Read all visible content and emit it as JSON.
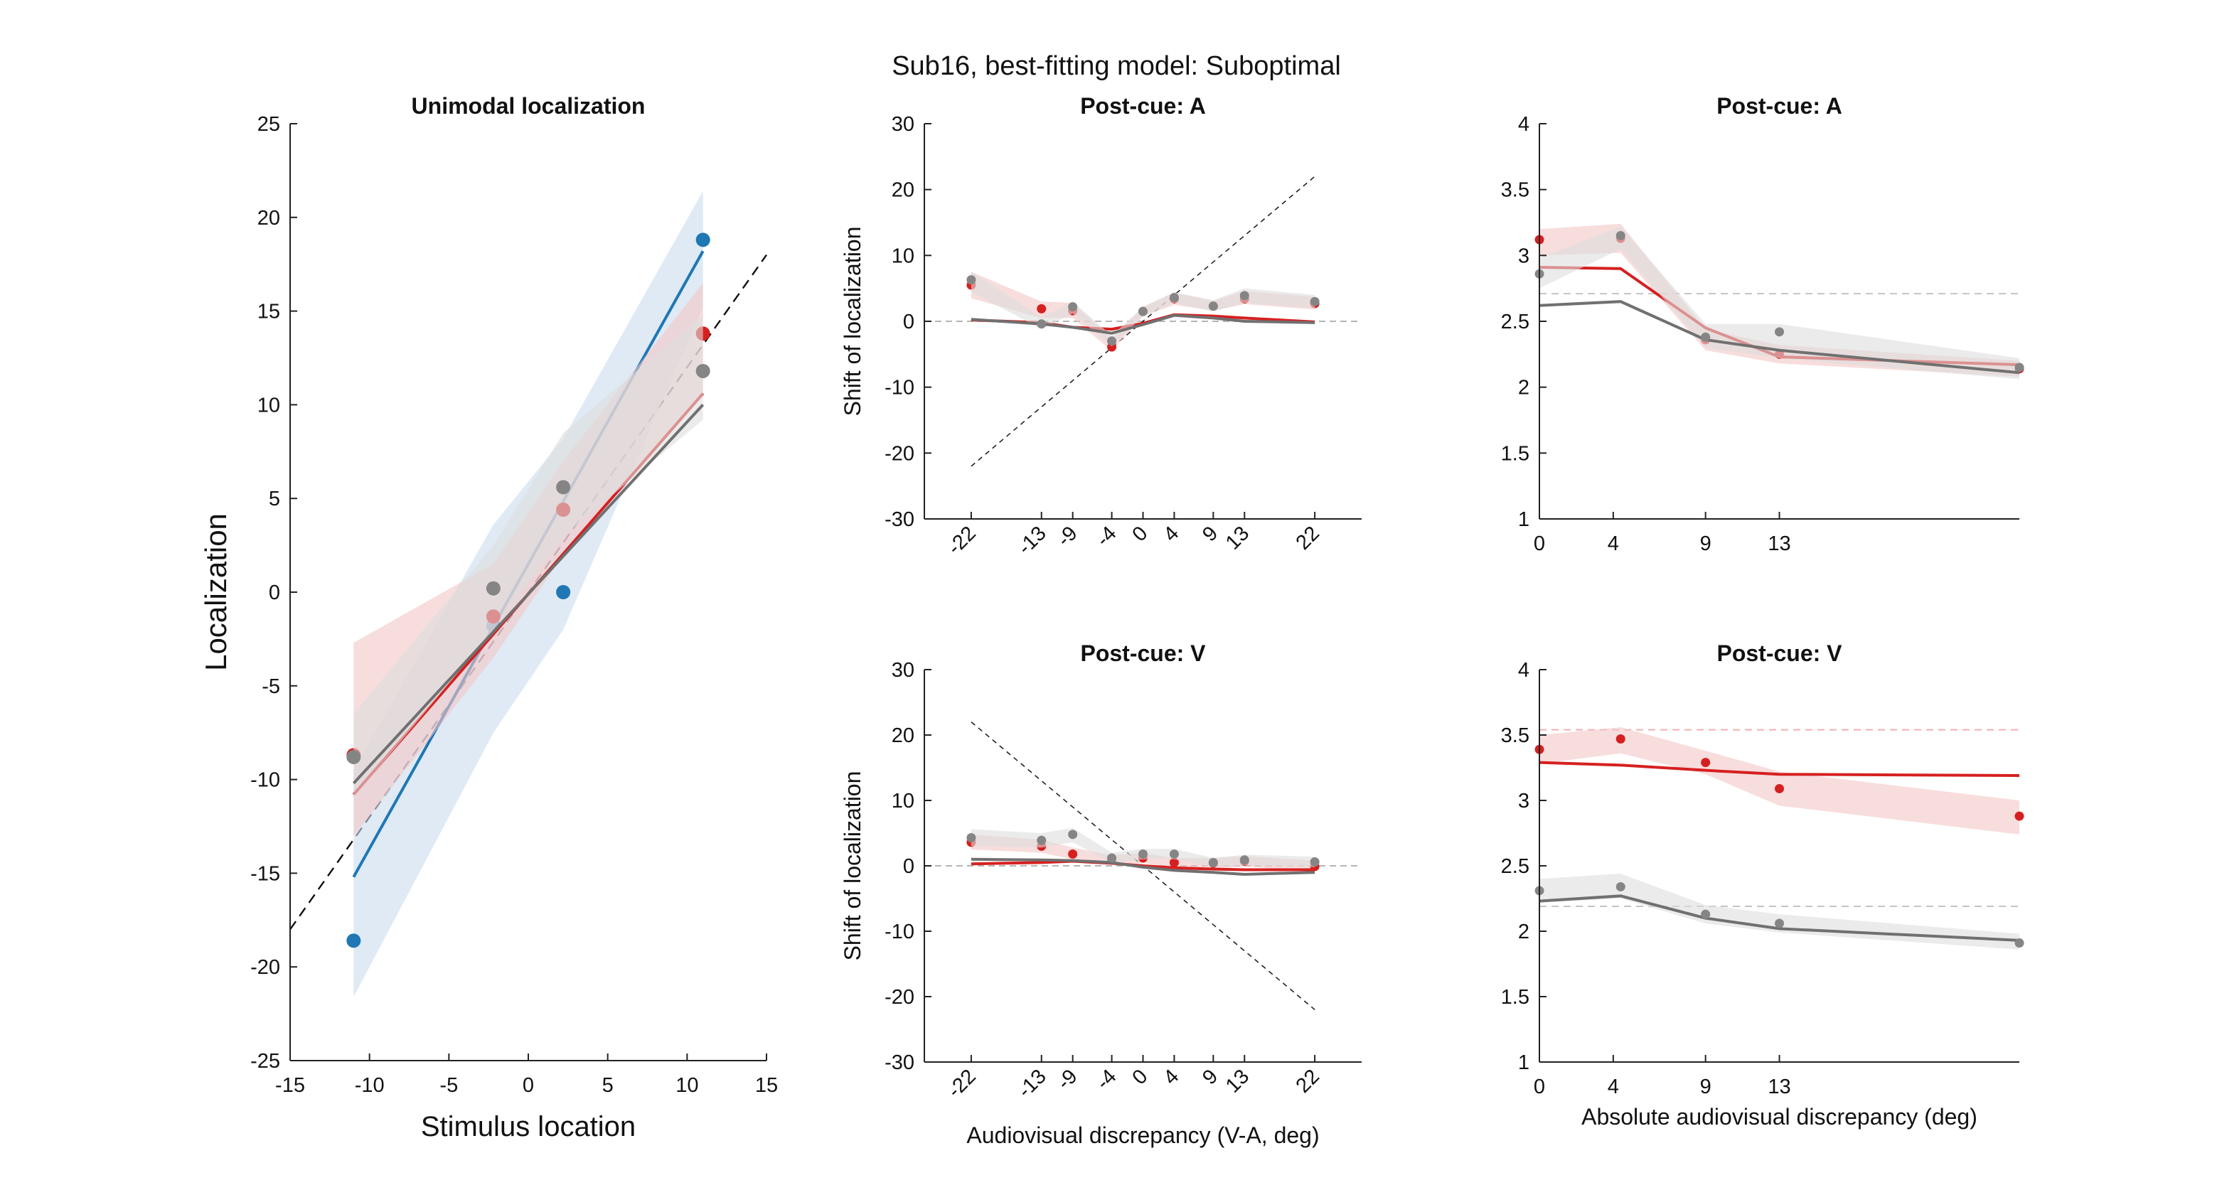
{
  "figure": {
    "suptitle": "Sub16, best-fitting model: Suboptimal"
  },
  "colors": {
    "red": "#d62020",
    "gray": "#707070",
    "gray_point": "#858585",
    "blue": "#1f77b4",
    "red_band": "#f3c6c6",
    "gray_band": "#dedede",
    "blue_band": "#c9dcef"
  },
  "chart_data": [
    {
      "type": "scatter",
      "panel": "unimodal",
      "title": "Unimodal localization",
      "xlabel": "Stimulus location",
      "ylabel": "Localization",
      "xlim": [
        -15,
        15
      ],
      "ylim": [
        -25,
        25
      ],
      "xticks": [
        -15,
        -10,
        -5,
        0,
        5,
        10,
        15
      ],
      "yticks": [
        -25,
        -20,
        -15,
        -10,
        -5,
        0,
        5,
        10,
        15,
        20,
        25
      ],
      "identity_line": true,
      "series": [
        {
          "color": "blue",
          "x": [
            -11,
            -2.2,
            2.2,
            11
          ],
          "y": [
            -18.6,
            -1.8,
            0.0,
            18.8
          ],
          "fit": [
            [
              -11,
              -15.2
            ],
            [
              11,
              18.2
            ]
          ],
          "band_x": [
            -11,
            -2.2,
            2.2,
            11
          ],
          "band_lo": [
            -21.6,
            -7.5,
            -2.0,
            15.2
          ],
          "band_hi": [
            -9.5,
            3.6,
            8.2,
            21.4
          ]
        },
        {
          "color": "red",
          "x": [
            -11,
            -2.2,
            2.2,
            11
          ],
          "y": [
            -8.7,
            -1.3,
            4.4,
            13.8
          ],
          "fit": [
            [
              -11,
              -10.8
            ],
            [
              11,
              10.6
            ]
          ],
          "band_x": [
            -11,
            -2.2,
            2.2,
            11
          ],
          "band_lo": [
            -13.0,
            -3.5,
            2.0,
            10.5
          ],
          "band_hi": [
            -2.7,
            1.5,
            7.0,
            16.5
          ]
        },
        {
          "color": "gray",
          "x": [
            -11,
            -2.2,
            2.2,
            11
          ],
          "y": [
            -8.8,
            0.2,
            5.6,
            11.8
          ],
          "fit": [
            [
              -11,
              -10.2
            ],
            [
              11,
              10.0
            ]
          ],
          "band_x": [
            -11,
            -2.2,
            2.2,
            11
          ],
          "band_lo": [
            -11.0,
            -2.0,
            3.0,
            9.2
          ],
          "band_hi": [
            -6.5,
            2.5,
            8.5,
            14.8
          ]
        }
      ]
    },
    {
      "type": "line",
      "panel": "shift-a",
      "title": "Post-cue: A",
      "xlabel": "",
      "ylabel": "Shift of localization",
      "xlim": [
        -28,
        28
      ],
      "ylim": [
        -30,
        30
      ],
      "xticks": [
        -22,
        -13,
        -9,
        -4,
        0,
        4,
        9,
        13,
        22
      ],
      "yticks": [
        -30,
        -20,
        -10,
        0,
        10,
        20,
        30
      ],
      "diagonal": [
        [
          -22,
          -22
        ],
        [
          22,
          22
        ]
      ],
      "zero_line": true,
      "series": [
        {
          "color": "red",
          "x": [
            -22,
            -13,
            -9,
            -4,
            0,
            4,
            9,
            13,
            22
          ],
          "points": [
            5.5,
            1.9,
            1.6,
            -3.9,
            1.5,
            3.4,
            2.3,
            3.4,
            2.7
          ],
          "model": [
            0.2,
            -0.2,
            -0.9,
            -1.2,
            -0.3,
            1.0,
            0.8,
            0.5,
            -0.1
          ],
          "band_lo": [
            3.5,
            0.5,
            0.5,
            -4.5,
            0.8,
            2.5,
            1.6,
            2.6,
            1.8
          ],
          "band_hi": [
            7.5,
            3.0,
            2.8,
            -2.6,
            2.2,
            4.4,
            3.1,
            4.6,
            3.7
          ]
        },
        {
          "color": "gray",
          "x": [
            -22,
            -13,
            -9,
            -4,
            0,
            4,
            9,
            13,
            22
          ],
          "points": [
            6.3,
            -0.4,
            2.2,
            -3.0,
            1.5,
            3.6,
            2.3,
            3.9,
            3.0
          ],
          "model": [
            0.3,
            -0.4,
            -0.9,
            -1.8,
            -0.5,
            0.9,
            0.5,
            0.0,
            -0.2
          ],
          "band_lo": [
            4.5,
            -1.2,
            1.2,
            -3.8,
            0.8,
            2.8,
            1.5,
            2.8,
            2.0
          ],
          "band_hi": [
            7.6,
            0.6,
            3.0,
            -2.2,
            2.2,
            4.4,
            3.2,
            5.0,
            4.0
          ]
        }
      ]
    },
    {
      "type": "line",
      "panel": "shift-v",
      "title": "Post-cue: V",
      "xlabel": "Audiovisual discrepancy (V-A, deg)",
      "ylabel": "Shift of localization",
      "xlim": [
        -28,
        28
      ],
      "ylim": [
        -30,
        30
      ],
      "xticks": [
        -22,
        -13,
        -9,
        -4,
        0,
        4,
        9,
        13,
        22
      ],
      "yticks": [
        -30,
        -20,
        -10,
        0,
        10,
        20,
        30
      ],
      "diagonal": [
        [
          -22,
          22
        ],
        [
          22,
          -22
        ]
      ],
      "zero_line": true,
      "series": [
        {
          "color": "red",
          "x": [
            -22,
            -13,
            -9,
            -4,
            0,
            4,
            9,
            13,
            22
          ],
          "points": [
            3.6,
            3.0,
            1.8,
            1.0,
            1.2,
            0.5,
            0.4,
            0.7,
            -0.1
          ],
          "model": [
            0.3,
            0.5,
            0.7,
            0.4,
            0.0,
            -0.3,
            -0.5,
            -0.6,
            -0.6
          ],
          "band_lo": [
            2.5,
            2.0,
            1.0,
            0.3,
            0.4,
            -0.3,
            -0.4,
            -0.1,
            -0.9
          ],
          "band_hi": [
            4.8,
            4.0,
            2.8,
            1.6,
            2.0,
            1.2,
            1.2,
            1.5,
            0.8
          ]
        },
        {
          "color": "gray",
          "x": [
            -22,
            -13,
            -9,
            -4,
            0,
            4,
            9,
            13,
            22
          ],
          "points": [
            4.3,
            3.9,
            4.8,
            1.2,
            1.8,
            1.8,
            0.5,
            0.9,
            0.6
          ],
          "model": [
            1.0,
            0.9,
            0.8,
            0.5,
            -0.2,
            -0.7,
            -1.0,
            -1.3,
            -1.0
          ],
          "band_lo": [
            3.0,
            2.8,
            3.6,
            0.4,
            1.0,
            1.0,
            -0.2,
            0.1,
            -0.2
          ],
          "band_hi": [
            5.6,
            5.0,
            5.8,
            2.0,
            2.6,
            2.6,
            1.2,
            1.7,
            1.4
          ]
        }
      ]
    },
    {
      "type": "line",
      "panel": "abs-a",
      "title": "Post-cue: A",
      "xlabel": "",
      "ylabel": "",
      "xlim": [
        0,
        26
      ],
      "ylim": [
        1,
        4
      ],
      "xticks": [
        0,
        4,
        9,
        13
      ],
      "yticks": [
        1,
        1.5,
        2,
        2.5,
        3,
        3.5,
        4
      ],
      "reference_lines": [
        2.71
      ],
      "series": [
        {
          "color": "red",
          "x": [
            0,
            4.4,
            9,
            13,
            26
          ],
          "points": [
            3.12,
            3.13,
            2.36,
            2.25,
            2.14
          ],
          "model": [
            2.91,
            2.9,
            2.45,
            2.23,
            2.17
          ],
          "band_lo": [
            3.0,
            3.02,
            2.28,
            2.18,
            2.08
          ],
          "band_hi": [
            3.2,
            3.24,
            2.44,
            2.32,
            2.2
          ]
        },
        {
          "color": "gray",
          "x": [
            0,
            4.4,
            9,
            13,
            26
          ],
          "points": [
            2.86,
            3.15,
            2.38,
            2.42,
            2.15
          ],
          "model": [
            2.62,
            2.65,
            2.36,
            2.28,
            2.11
          ],
          "band_lo": [
            2.75,
            3.05,
            2.3,
            2.22,
            2.06
          ],
          "band_hi": [
            2.98,
            3.22,
            2.48,
            2.48,
            2.22
          ]
        }
      ]
    },
    {
      "type": "line",
      "panel": "abs-v",
      "title": "Post-cue: V",
      "xlabel": "Absolute audiovisual discrepancy (deg)",
      "ylabel": "",
      "xlim": [
        0,
        26
      ],
      "ylim": [
        1,
        4
      ],
      "xticks": [
        0,
        4,
        9,
        13
      ],
      "yticks": [
        1,
        1.5,
        2,
        2.5,
        3,
        3.5,
        4
      ],
      "reference_lines": [
        3.54,
        2.19
      ],
      "series": [
        {
          "color": "red",
          "x": [
            0,
            4.4,
            9,
            13,
            26
          ],
          "points": [
            3.39,
            3.47,
            3.29,
            3.09,
            2.88
          ],
          "model": [
            3.29,
            3.27,
            3.23,
            3.2,
            3.19
          ],
          "band_lo": [
            3.28,
            3.36,
            3.2,
            2.96,
            2.74
          ],
          "band_hi": [
            3.5,
            3.56,
            3.38,
            3.22,
            3.0
          ]
        },
        {
          "color": "gray",
          "x": [
            0,
            4.4,
            9,
            13,
            26
          ],
          "points": [
            2.31,
            2.34,
            2.13,
            2.06,
            1.91
          ],
          "model": [
            2.23,
            2.27,
            2.1,
            2.02,
            1.93
          ],
          "band_lo": [
            2.22,
            2.25,
            2.06,
            1.99,
            1.86
          ],
          "band_hi": [
            2.4,
            2.44,
            2.2,
            2.13,
            1.98
          ]
        }
      ]
    }
  ]
}
